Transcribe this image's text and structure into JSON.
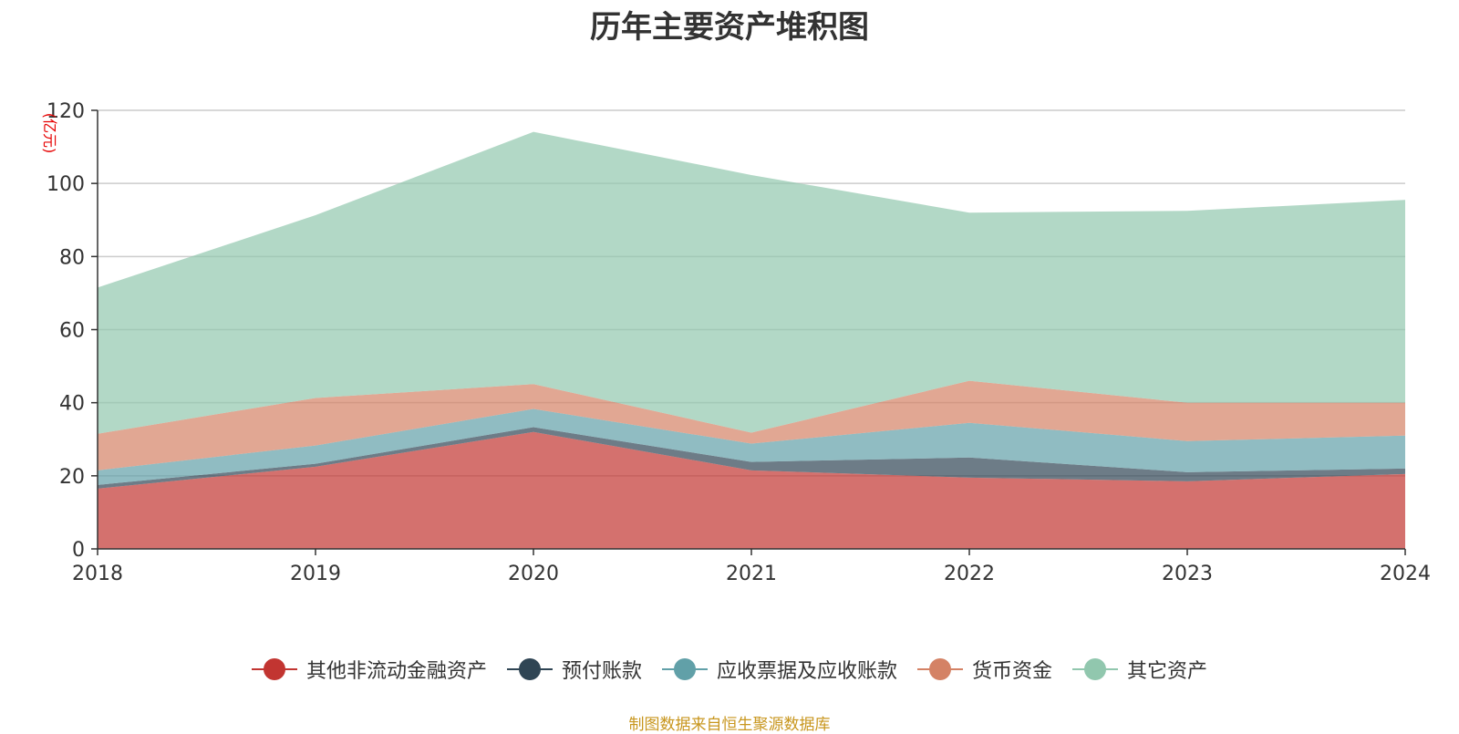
{
  "chart_data": {
    "type": "area",
    "title": "历年主要资产堆积图",
    "ylabel": "(亿元)",
    "xlabel": "",
    "stacked": true,
    "x": [
      "2018",
      "2019",
      "2020",
      "2021",
      "2022",
      "2023",
      "2024"
    ],
    "ylim": [
      0,
      120
    ],
    "yticks": [
      0,
      20,
      40,
      60,
      80,
      100,
      120
    ],
    "grid": true,
    "legend_position": "bottom",
    "series": [
      {
        "name": "其他非流动金融资产",
        "color": "#c23531",
        "values": [
          16.5,
          22.5,
          32.0,
          21.5,
          19.5,
          18.5,
          20.5
        ]
      },
      {
        "name": "预付账款",
        "color": "#2f4554",
        "values": [
          1.0,
          0.8,
          1.3,
          2.3,
          5.5,
          2.5,
          1.5
        ]
      },
      {
        "name": "应收票据及应收账款",
        "color": "#61a0a8",
        "values": [
          4.0,
          5.0,
          5.0,
          5.0,
          9.5,
          8.5,
          9.0
        ]
      },
      {
        "name": "货币资金",
        "color": "#d48265",
        "values": [
          10.0,
          13.0,
          6.8,
          3.0,
          11.5,
          10.5,
          9.0
        ]
      },
      {
        "name": "其它资产",
        "color": "#91c7ae",
        "values": [
          40.0,
          50.0,
          69.0,
          70.5,
          46.0,
          52.5,
          55.5
        ]
      }
    ]
  },
  "footer": {
    "source": "制图数据来自恒生聚源数据库"
  }
}
